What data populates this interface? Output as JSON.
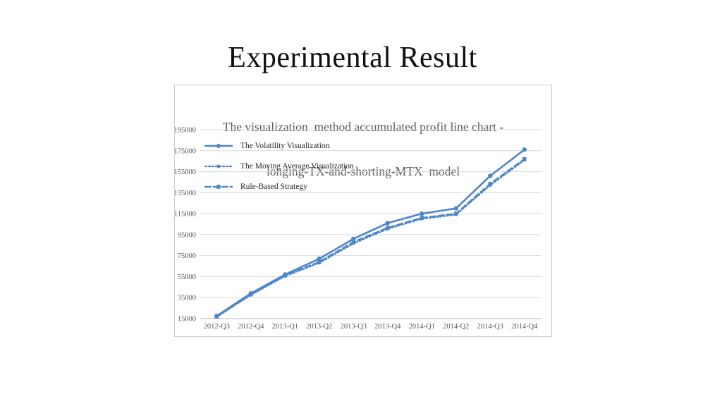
{
  "slide": {
    "title": "Experimental Result"
  },
  "chart": {
    "title_lines": [
      "The visualization  method accumulated profit line chart -",
      "longing-TX-and-shorting-MTX  model"
    ]
  },
  "chart_data": {
    "type": "line",
    "title": "The visualization method accumulated profit line chart - longing-TX-and-shorting-MTX model",
    "categories": [
      "2012-Q3",
      "2012-Q4",
      "2013-Q1",
      "2013-Q2",
      "2013-Q3",
      "2013-Q4",
      "2014-Q1",
      "2014-Q2",
      "2014-Q3",
      "2014-Q4"
    ],
    "series": [
      {
        "name": "The Volatility Visualization",
        "style": "solid",
        "marker": "circle",
        "values": [
          17500,
          39000,
          57000,
          72000,
          91000,
          106000,
          115000,
          120000,
          151000,
          176000
        ]
      },
      {
        "name": "The Moving Average Visualization",
        "style": "dotted",
        "marker": "dot",
        "values": [
          16500,
          37500,
          55500,
          68000,
          86500,
          100500,
          110000,
          114000,
          142000,
          166000
        ]
      },
      {
        "name": "Rule-Based Strategy",
        "style": "dashed",
        "marker": "square",
        "values": [
          17000,
          38000,
          56000,
          69000,
          88000,
          101500,
          111000,
          115000,
          143500,
          167000
        ]
      }
    ],
    "y_ticks": [
      195000,
      175000,
      155000,
      135000,
      115000,
      95000,
      75000,
      55000,
      35000,
      15000
    ],
    "ylim": [
      15000,
      195000
    ],
    "grid": true,
    "legend_position": "inside-top-left",
    "colors": {
      "line": "#4e86c8",
      "grid": "#d9d9d9",
      "axis": "#b3b3b3",
      "text": "#595959"
    }
  }
}
